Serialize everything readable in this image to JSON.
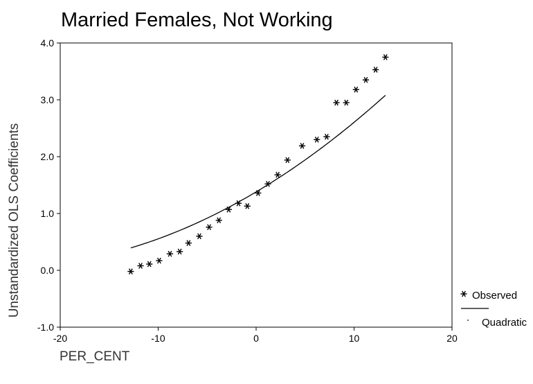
{
  "chart_data": {
    "type": "scatter",
    "title": "Married Females, Not Working",
    "xlabel": "PER_CENT",
    "ylabel": "Unstandardized OLS Coefficients",
    "xlim": [
      -20,
      20
    ],
    "ylim": [
      -1.0,
      4.0
    ],
    "xticks": [
      "-20",
      "-10",
      "0",
      "10",
      "20"
    ],
    "yticks": [
      "-1.0",
      "0.0",
      "1.0",
      "2.0",
      "3.0",
      "4.0"
    ],
    "grid": false,
    "legend_position": "right, bottom",
    "series": [
      {
        "name": "Observed",
        "marker": "asterisk",
        "x": [
          -12.8,
          -11.8,
          -10.9,
          -9.9,
          -8.8,
          -7.8,
          -6.9,
          -5.8,
          -4.8,
          -3.8,
          -2.8,
          -1.8,
          -0.9,
          0.2,
          1.2,
          2.2,
          3.2,
          4.7,
          6.2,
          7.2,
          8.2,
          9.2,
          10.2,
          11.2,
          12.2,
          13.2
        ],
        "y": [
          -0.02,
          0.08,
          0.11,
          0.17,
          0.29,
          0.33,
          0.48,
          0.6,
          0.76,
          0.88,
          1.07,
          1.18,
          1.13,
          1.36,
          1.52,
          1.68,
          1.94,
          2.19,
          2.3,
          2.35,
          2.95,
          2.95,
          3.18,
          3.35,
          3.53,
          3.75
        ]
      },
      {
        "name": "Quadratic",
        "style": "line",
        "coefficients": {
          "b0": 1.38,
          "b1": 0.1025,
          "b2": 0.00199
        },
        "x_range": [
          -12.8,
          13.2
        ]
      }
    ]
  }
}
